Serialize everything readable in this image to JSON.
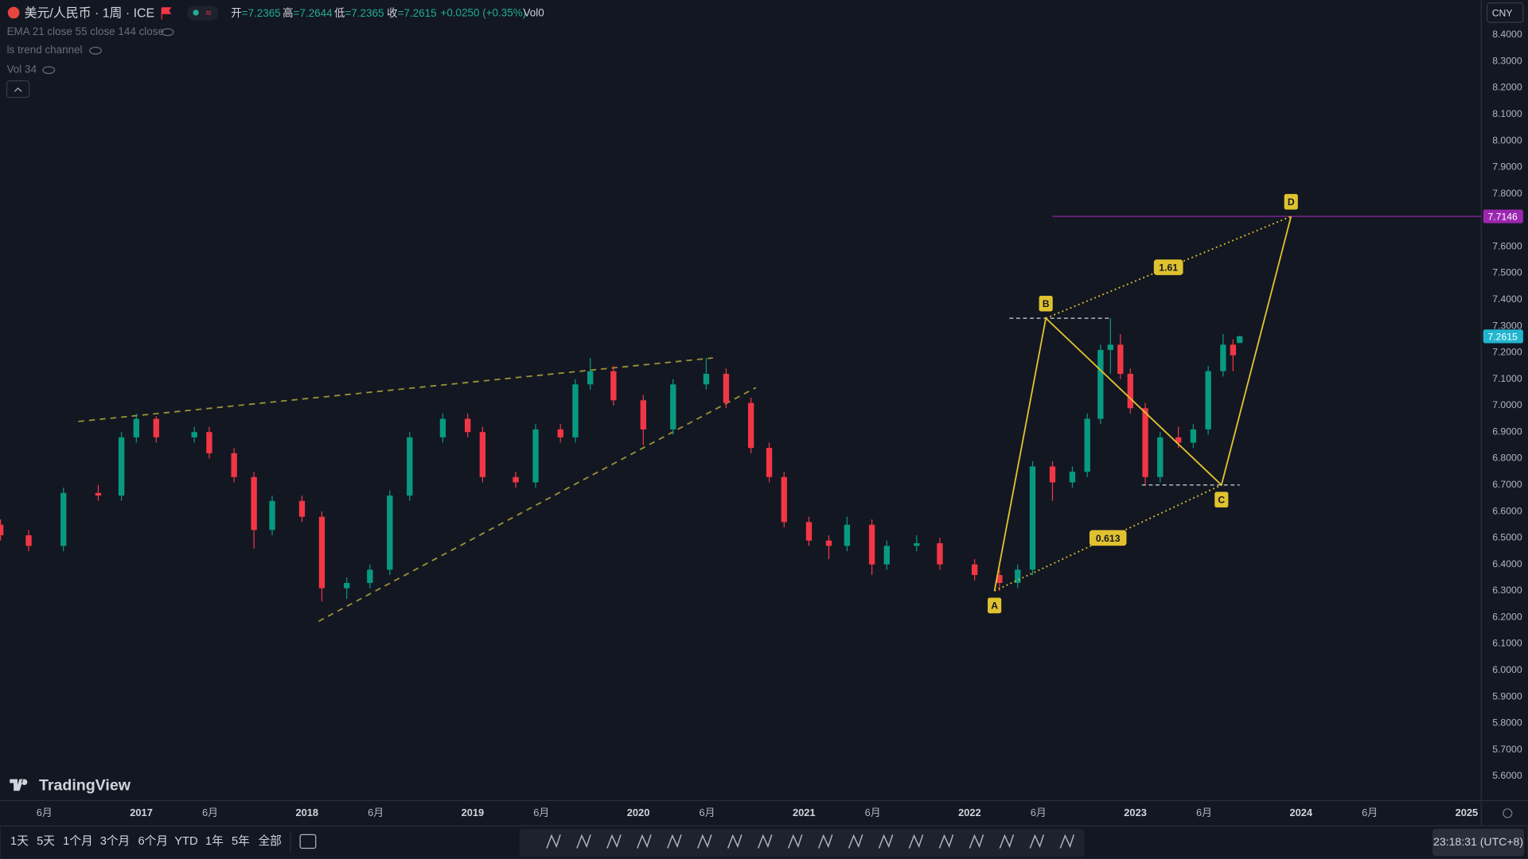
{
  "header": {
    "symbol": "美元/人民币 · 1周 · ICE",
    "ohlc": [
      {
        "k": "开",
        "v": "=7.2365"
      },
      {
        "k": "高",
        "v": "=7.2644"
      },
      {
        "k": "低",
        "v": "=7.2365"
      },
      {
        "k": "收",
        "v": "=7.2615"
      }
    ],
    "change": "+0.0250 (+0.35%)",
    "volume": "Vol0",
    "indicators": [
      "EMA 21 close 55 close 144 close",
      "ls trend channel",
      "Vol 34"
    ],
    "currency": "CNY",
    "brand": "TradingView"
  },
  "toolbar": {
    "periods": [
      "1天",
      "5天",
      "1个月",
      "3个月",
      "6个月",
      "YTD",
      "1年",
      "5年",
      "全部"
    ],
    "clock": "23:18:31 (UTC+8)"
  },
  "chart_data": {
    "type": "candlestick",
    "xlim": [
      2016.147,
      2025.088
    ],
    "ylim": [
      5.508,
      8.532
    ],
    "grid": false,
    "up_color": "#089981",
    "down_color": "#f23645",
    "xticks": [
      {
        "value": 2016.415,
        "label": "6月"
      },
      2017,
      {
        "value": 2017.415,
        "label": "6月"
      },
      2018,
      {
        "value": 2018.415,
        "label": "6月"
      },
      2019,
      {
        "value": 2019.415,
        "label": "6月"
      },
      2020,
      {
        "value": 2020.415,
        "label": "6月"
      },
      2021,
      {
        "value": 2021.415,
        "label": "6月"
      },
      2022,
      {
        "value": 2022.415,
        "label": "6月"
      },
      2023,
      {
        "value": 2023.415,
        "label": "6月"
      },
      2024,
      {
        "value": 2024.415,
        "label": "6月"
      },
      2025
    ],
    "yticks": [
      {
        "value": 5.6,
        "label": "5.6000"
      },
      {
        "value": 5.7,
        "label": "5.7000"
      },
      {
        "value": 5.8,
        "label": "5.8000"
      },
      {
        "value": 5.9,
        "label": "5.9000"
      },
      {
        "value": 6.0,
        "label": "6.0000"
      },
      {
        "value": 6.1,
        "label": "6.1000"
      },
      {
        "value": 6.2,
        "label": "6.2000"
      },
      {
        "value": 6.3,
        "label": "6.3000"
      },
      {
        "value": 6.4,
        "label": "6.4000"
      },
      {
        "value": 6.5,
        "label": "6.5000"
      },
      {
        "value": 6.6,
        "label": "6.6000"
      },
      {
        "value": 6.7,
        "label": "6.7000"
      },
      {
        "value": 6.8,
        "label": "6.8000"
      },
      {
        "value": 6.9,
        "label": "6.9000"
      },
      {
        "value": 7.0,
        "label": "7.0000"
      },
      {
        "value": 7.1,
        "label": "7.1000"
      },
      {
        "value": 7.2,
        "label": "7.2000"
      },
      {
        "value": 7.3,
        "label": "7.3000"
      },
      {
        "value": 7.4,
        "label": "7.4000"
      },
      {
        "value": 7.5,
        "label": "7.5000"
      },
      {
        "value": 7.6,
        "label": "7.6000"
      },
      {
        "value": 7.7,
        "label": "7.7000"
      },
      {
        "value": 7.8,
        "label": "7.8000"
      },
      {
        "value": 7.9,
        "label": "7.9000"
      },
      {
        "value": 8.0,
        "label": "8.0000"
      },
      {
        "value": 8.1,
        "label": "8.1000"
      },
      {
        "value": 8.2,
        "label": "8.2000"
      },
      {
        "value": 8.3,
        "label": "8.3000"
      },
      {
        "value": 8.4,
        "label": "8.4000"
      }
    ],
    "x": [
      2016.15,
      2016.32,
      2016.53,
      2016.74,
      2016.88,
      2016.97,
      2017.09,
      2017.32,
      2017.41,
      2017.56,
      2017.68,
      2017.79,
      2017.97,
      2018.09,
      2018.24,
      2018.38,
      2018.5,
      2018.62,
      2018.82,
      2018.97,
      2019.06,
      2019.26,
      2019.38,
      2019.53,
      2019.62,
      2019.71,
      2019.85,
      2020.03,
      2020.21,
      2020.41,
      2020.53,
      2020.68,
      2020.79,
      2020.88,
      2021.03,
      2021.15,
      2021.26,
      2021.41,
      2021.5,
      2021.68,
      2021.82,
      2022.03,
      2022.18,
      2022.29,
      2022.38,
      2022.5,
      2022.62,
      2022.71,
      2022.79,
      2022.85,
      2022.91,
      2022.97,
      2023.06,
      2023.15,
      2023.26,
      2023.35,
      2023.44,
      2023.53,
      2023.59,
      2023.63
    ],
    "ohlc": [
      [
        6.55,
        6.57,
        6.49,
        6.51
      ],
      [
        6.51,
        6.53,
        6.45,
        6.47
      ],
      [
        6.47,
        6.69,
        6.45,
        6.67
      ],
      [
        6.67,
        6.7,
        6.64,
        6.66
      ],
      [
        6.66,
        6.9,
        6.64,
        6.88
      ],
      [
        6.88,
        6.97,
        6.86,
        6.95
      ],
      [
        6.95,
        6.96,
        6.86,
        6.88
      ],
      [
        6.88,
        6.92,
        6.86,
        6.9
      ],
      [
        6.9,
        6.92,
        6.8,
        6.82
      ],
      [
        6.82,
        6.84,
        6.71,
        6.73
      ],
      [
        6.73,
        6.75,
        6.46,
        6.53
      ],
      [
        6.53,
        6.66,
        6.51,
        6.64
      ],
      [
        6.64,
        6.66,
        6.56,
        6.58
      ],
      [
        6.58,
        6.6,
        6.26,
        6.31
      ],
      [
        6.31,
        6.35,
        6.27,
        6.33
      ],
      [
        6.33,
        6.4,
        6.31,
        6.38
      ],
      [
        6.38,
        6.68,
        6.36,
        6.66
      ],
      [
        6.66,
        6.9,
        6.64,
        6.88
      ],
      [
        6.88,
        6.97,
        6.86,
        6.95
      ],
      [
        6.95,
        6.97,
        6.88,
        6.9
      ],
      [
        6.9,
        6.92,
        6.71,
        6.73
      ],
      [
        6.73,
        6.75,
        6.69,
        6.71
      ],
      [
        6.71,
        6.93,
        6.69,
        6.91
      ],
      [
        6.91,
        6.93,
        6.86,
        6.88
      ],
      [
        6.88,
        7.1,
        6.86,
        7.08
      ],
      [
        7.08,
        7.18,
        7.06,
        7.13
      ],
      [
        7.13,
        7.15,
        7.0,
        7.02
      ],
      [
        7.02,
        7.04,
        6.85,
        6.91
      ],
      [
        6.91,
        7.1,
        6.89,
        7.08
      ],
      [
        7.08,
        7.18,
        7.06,
        7.12
      ],
      [
        7.12,
        7.14,
        6.99,
        7.01
      ],
      [
        7.01,
        7.03,
        6.82,
        6.84
      ],
      [
        6.84,
        6.86,
        6.71,
        6.73
      ],
      [
        6.73,
        6.75,
        6.54,
        6.56
      ],
      [
        6.56,
        6.58,
        6.47,
        6.49
      ],
      [
        6.49,
        6.51,
        6.42,
        6.47
      ],
      [
        6.47,
        6.58,
        6.45,
        6.55
      ],
      [
        6.55,
        6.57,
        6.36,
        6.4
      ],
      [
        6.4,
        6.49,
        6.38,
        6.47
      ],
      [
        6.47,
        6.51,
        6.45,
        6.48
      ],
      [
        6.48,
        6.5,
        6.38,
        6.4
      ],
      [
        6.4,
        6.42,
        6.34,
        6.36
      ],
      [
        6.36,
        6.38,
        6.3,
        6.33
      ],
      [
        6.33,
        6.4,
        6.31,
        6.38
      ],
      [
        6.38,
        6.79,
        6.36,
        6.77
      ],
      [
        6.77,
        6.79,
        6.64,
        6.71
      ],
      [
        6.71,
        6.77,
        6.69,
        6.75
      ],
      [
        6.75,
        6.97,
        6.73,
        6.95
      ],
      [
        6.95,
        7.23,
        6.93,
        7.21
      ],
      [
        7.21,
        7.33,
        7.12,
        7.23
      ],
      [
        7.23,
        7.27,
        7.1,
        7.12
      ],
      [
        7.12,
        7.14,
        6.97,
        6.99
      ],
      [
        6.99,
        7.01,
        6.7,
        6.73
      ],
      [
        6.73,
        6.9,
        6.71,
        6.88
      ],
      [
        6.88,
        6.92,
        6.84,
        6.86
      ],
      [
        6.86,
        6.93,
        6.84,
        6.91
      ],
      [
        6.91,
        7.15,
        6.89,
        7.13
      ],
      [
        7.13,
        7.27,
        7.11,
        7.23
      ],
      [
        7.23,
        7.25,
        7.13,
        7.19
      ],
      [
        7.2365,
        7.2644,
        7.2365,
        7.2615
      ]
    ],
    "trend_lines": [
      {
        "x": [
          2016.62,
          2020.45
        ],
        "y": [
          6.94,
          7.18
        ]
      },
      {
        "x": [
          2018.07,
          2020.71
        ],
        "y": [
          6.185,
          7.068
        ]
      }
    ],
    "trend_color": "#9a9136",
    "pattern": {
      "labels": [
        "A",
        "B",
        "C",
        "D"
      ],
      "x": [
        2022.15,
        2022.46,
        2023.52,
        2023.94
      ],
      "y": [
        6.3,
        7.33,
        6.7,
        7.7146
      ],
      "ratios": [
        0.613,
        1.61
      ],
      "color": "#e0c22e",
      "levels": [
        {
          "x": [
            2022.24,
            2022.85
          ],
          "y": 7.33
        },
        {
          "x": [
            2023.04,
            2023.63
          ],
          "y": 6.7
        }
      ]
    },
    "last_price": 7.2615,
    "last_color": "#22b5d0",
    "target_price": 7.7146,
    "target_start": 2022.5,
    "target_color": "#9c27b0"
  }
}
